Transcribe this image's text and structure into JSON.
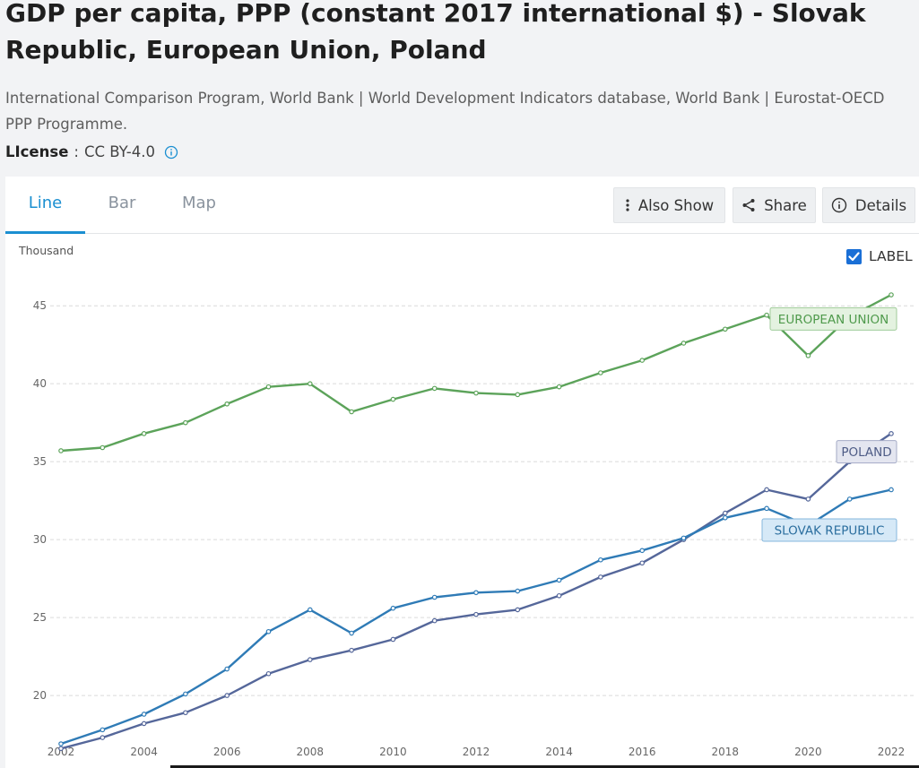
{
  "header": {
    "title": "GDP per capita, PPP (constant 2017 international $) - Slovak Republic, European Union, Poland",
    "source": "International Comparison Program, World Bank | World Development Indicators database, World Bank | Eurostat-OECD PPP Programme.",
    "license_label": "LIcense",
    "license_sep": ":",
    "license_value": "CC BY-4.0"
  },
  "tabs": [
    {
      "label": "Line",
      "active": true
    },
    {
      "label": "Bar",
      "active": false
    },
    {
      "label": "Map",
      "active": false
    }
  ],
  "toolbar": {
    "also_show": "Also Show",
    "share": "Share",
    "details": "Details"
  },
  "label_toggle": {
    "text": "LABEL",
    "checked": true
  },
  "colors": {
    "accent": "#1b8fd1",
    "european_union": "#5ca35a",
    "slovak_republic": "#2f7bb6",
    "poland": "#55679a"
  },
  "icons": {
    "info": "info-icon",
    "also_show": "vertical-dots-icon",
    "share": "share-icon",
    "details": "info-circle-icon",
    "checkbox": "checkmark-icon"
  },
  "chart_data": {
    "type": "line",
    "title": "GDP per capita, PPP (constant 2017 international $)",
    "ylabel": "Thousand",
    "xlabel": "",
    "x": [
      2002,
      2003,
      2004,
      2005,
      2006,
      2007,
      2008,
      2009,
      2010,
      2011,
      2012,
      2013,
      2014,
      2015,
      2016,
      2017,
      2018,
      2019,
      2020,
      2021,
      2022
    ],
    "xticks": [
      2002,
      2004,
      2006,
      2008,
      2010,
      2012,
      2014,
      2016,
      2018,
      2020,
      2022
    ],
    "yticks": [
      20,
      25,
      30,
      35,
      40,
      45
    ],
    "ylim": [
      16.5,
      48
    ],
    "xlim": [
      2002,
      2022
    ],
    "grid": true,
    "series": [
      {
        "name": "European Union",
        "label": "EUROPEAN UNION",
        "key": "european_union",
        "values": [
          35.7,
          35.9,
          36.8,
          37.5,
          38.7,
          39.8,
          40.0,
          38.2,
          39.0,
          39.7,
          39.4,
          39.3,
          39.8,
          40.7,
          41.5,
          42.6,
          43.5,
          44.4,
          41.8,
          44.3,
          45.7
        ]
      },
      {
        "name": "Poland",
        "label": "POLAND",
        "key": "poland",
        "values": [
          16.6,
          17.3,
          18.2,
          18.9,
          20.0,
          21.4,
          22.3,
          22.9,
          23.6,
          24.8,
          25.2,
          25.5,
          26.4,
          27.6,
          28.5,
          30.0,
          31.7,
          33.2,
          32.6,
          35.0,
          36.8
        ]
      },
      {
        "name": "Slovak Republic",
        "label": "SLOVAK REPUBLIC",
        "key": "slovak_republic",
        "values": [
          16.9,
          17.8,
          18.8,
          20.1,
          21.7,
          24.1,
          25.5,
          24.0,
          25.6,
          26.3,
          26.6,
          26.7,
          27.4,
          28.7,
          29.3,
          30.1,
          31.4,
          32.0,
          30.9,
          32.6,
          33.2
        ]
      }
    ]
  }
}
